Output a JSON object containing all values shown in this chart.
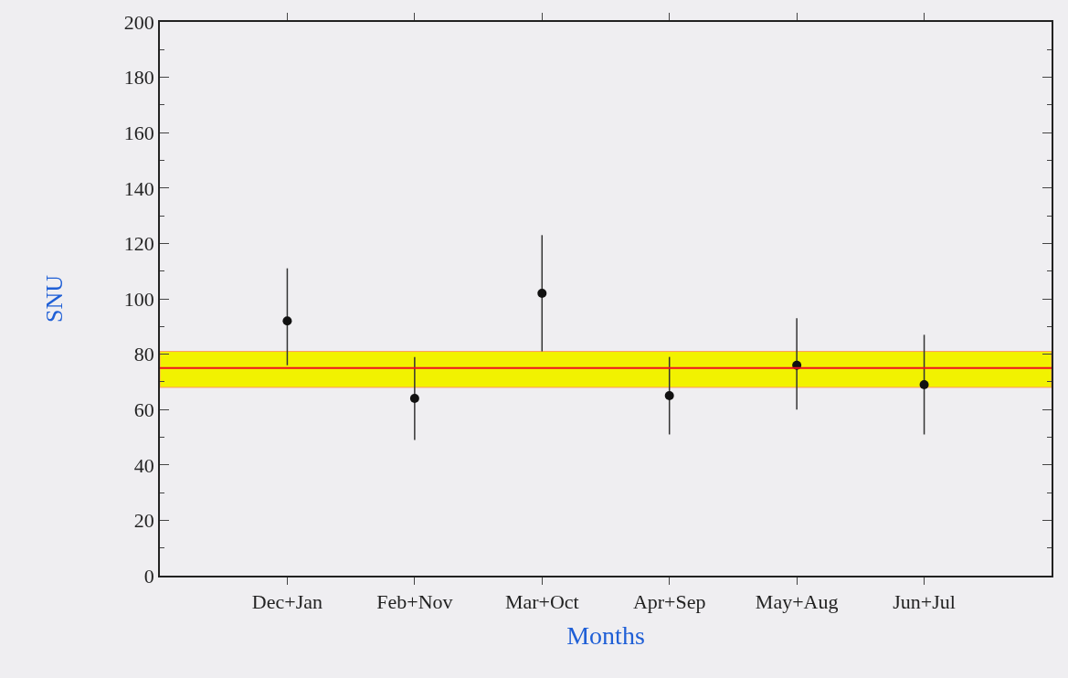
{
  "chart_data": {
    "type": "scatter",
    "xlabel": "Months",
    "ylabel": "SNU",
    "categories": [
      "Dec+Jan",
      "Feb+Nov",
      "Mar+Oct",
      "Apr+Sep",
      "May+Aug",
      "Jun+Jul"
    ],
    "series": [
      {
        "color": "#111111",
        "values": [
          92,
          64,
          102,
          65,
          76,
          69
        ],
        "errors": [
          [
            76,
            111
          ],
          [
            49,
            79
          ],
          [
            81,
            123
          ],
          [
            51,
            79
          ],
          [
            60,
            93
          ],
          [
            51,
            87
          ]
        ]
      }
    ],
    "ylim": [
      0,
      200
    ],
    "yticks": [
      0,
      20,
      40,
      60,
      80,
      100,
      120,
      140,
      160,
      180,
      200
    ],
    "bands": [
      {
        "axis": "y",
        "from": 68,
        "to": 81,
        "color": "#f2f200"
      }
    ],
    "ref_lines": [
      {
        "axis": "y",
        "value": 75,
        "color": "#ee1122",
        "line_style": "solid"
      }
    ],
    "marker": "circle",
    "grid": false
  }
}
